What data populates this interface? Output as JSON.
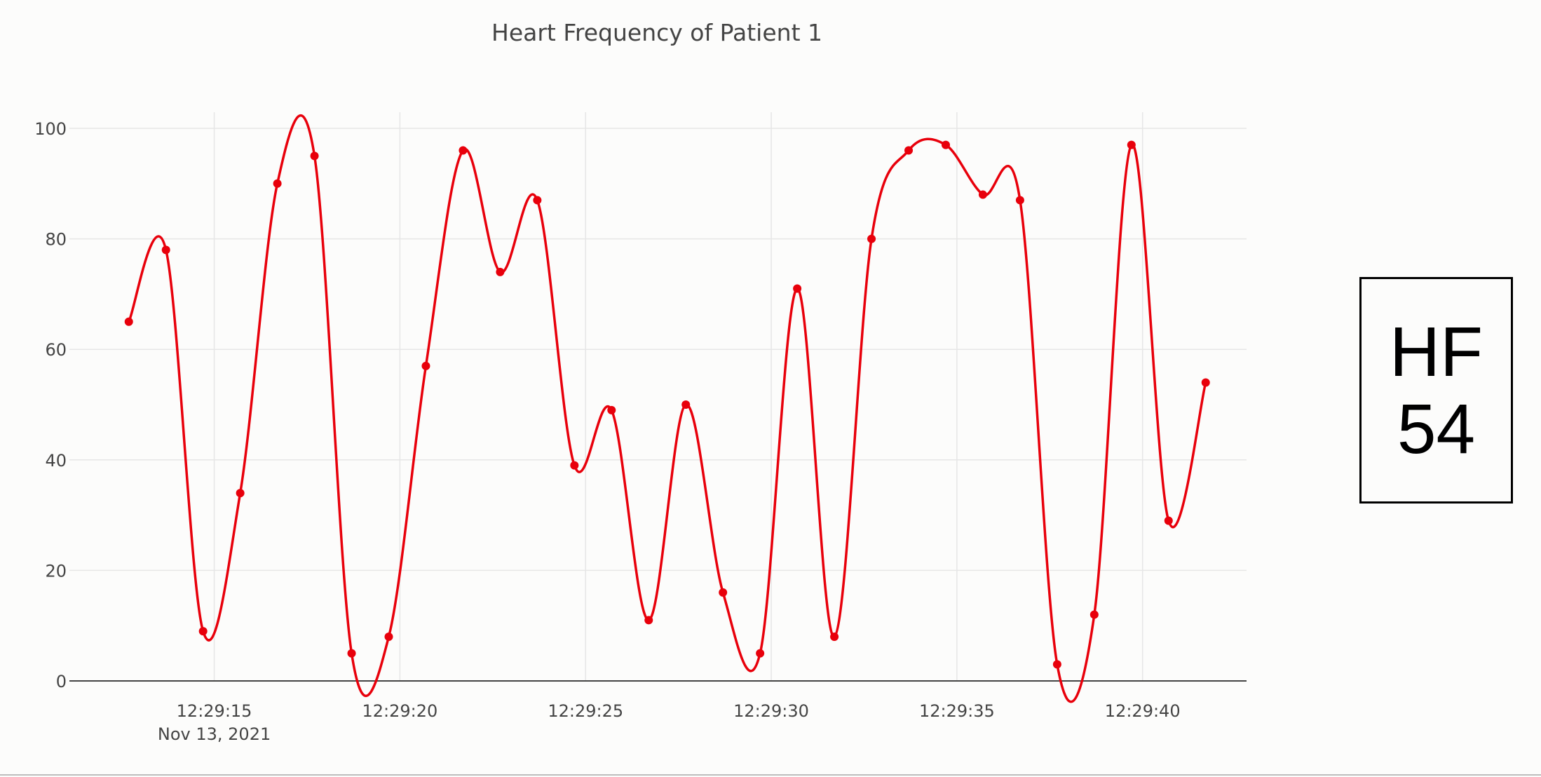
{
  "chart_data": {
    "type": "line",
    "title": "Heart Frequency of Patient 1",
    "xlabel": "",
    "ylabel": "",
    "x_start": "12:29:12.7",
    "x_step_seconds": 1,
    "x_tick_labels": [
      "12:29:15",
      "12:29:20",
      "12:29:25",
      "12:29:30",
      "12:29:35",
      "12:29:40"
    ],
    "x_tick_seconds": [
      15,
      20,
      25,
      30,
      35,
      40
    ],
    "x_date_label": "Nov 13, 2021",
    "xlim_seconds": [
      11.1,
      42.8
    ],
    "ylim": [
      0,
      100
    ],
    "y_ticks": [
      0,
      20,
      40,
      60,
      80,
      100
    ],
    "grid": true,
    "line_shape": "spline",
    "series": [
      {
        "name": "HF",
        "color": "#e8000b",
        "x_seconds": [
          12.7,
          13.7,
          14.7,
          15.7,
          16.7,
          17.7,
          18.7,
          19.7,
          20.7,
          21.7,
          22.7,
          23.7,
          24.7,
          25.7,
          26.7,
          27.7,
          28.7,
          29.7,
          30.7,
          31.7,
          32.7,
          33.7,
          34.7,
          35.7,
          36.7,
          37.7,
          38.7,
          39.7,
          40.7,
          41.7
        ],
        "values": [
          65,
          78,
          9,
          34,
          90,
          95,
          5,
          8,
          57,
          96,
          74,
          87,
          39,
          49,
          11,
          50,
          16,
          5,
          71,
          8,
          80,
          96,
          97,
          88,
          87,
          3,
          12,
          97,
          29,
          54
        ]
      }
    ]
  },
  "indicator": {
    "label": "HF",
    "value": "54"
  }
}
